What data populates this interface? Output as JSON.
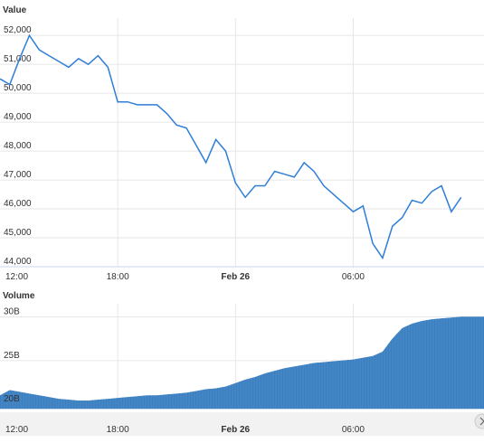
{
  "chart_data": [
    {
      "type": "line",
      "ylabel": "Value",
      "ylim": [
        44000,
        52600
      ],
      "yticks": [
        "52,000",
        "51,000",
        "50,000",
        "49,000",
        "48,000",
        "47,000",
        "46,000",
        "45,000",
        "44,000"
      ],
      "ytick_values": [
        52000,
        51000,
        50000,
        49000,
        48000,
        47000,
        46000,
        45000,
        44000
      ],
      "xticks": [
        "12:00",
        "18:00",
        "Feb 26",
        "06:00"
      ],
      "grid": true,
      "series": [
        {
          "x": [
            "2021-02-25 12:00",
            "2021-02-25 12:30",
            "2021-02-25 13:00",
            "2021-02-25 13:30",
            "2021-02-25 14:00",
            "2021-02-25 14:30",
            "2021-02-25 15:00",
            "2021-02-25 15:30",
            "2021-02-25 16:00",
            "2021-02-25 16:30",
            "2021-02-25 17:00",
            "2021-02-25 17:30",
            "2021-02-25 18:00",
            "2021-02-25 18:30",
            "2021-02-25 19:00",
            "2021-02-25 19:30",
            "2021-02-25 20:00",
            "2021-02-25 20:30",
            "2021-02-25 21:00",
            "2021-02-25 21:30",
            "2021-02-25 22:00",
            "2021-02-25 22:30",
            "2021-02-25 23:00",
            "2021-02-25 23:30",
            "2021-02-26 00:00",
            "2021-02-26 00:30",
            "2021-02-26 01:00",
            "2021-02-26 01:30",
            "2021-02-26 02:00",
            "2021-02-26 02:30",
            "2021-02-26 03:00",
            "2021-02-26 03:30",
            "2021-02-26 04:00",
            "2021-02-26 04:30",
            "2021-02-26 05:00",
            "2021-02-26 05:30",
            "2021-02-26 06:00",
            "2021-02-26 06:30",
            "2021-02-26 07:00",
            "2021-02-26 07:30",
            "2021-02-26 08:00",
            "2021-02-26 08:30",
            "2021-02-26 09:00",
            "2021-02-26 09:30",
            "2021-02-26 10:00",
            "2021-02-26 10:30",
            "2021-02-26 11:00",
            "2021-02-26 11:30"
          ],
          "values": [
            50500,
            50300,
            51200,
            52000,
            51500,
            51300,
            51100,
            50900,
            51200,
            51000,
            51300,
            50900,
            49700,
            49700,
            49600,
            49600,
            49600,
            49300,
            48900,
            48800,
            48200,
            47600,
            48400,
            48000,
            46900,
            46400,
            46800,
            46800,
            47300,
            47200,
            47100,
            47600,
            47300,
            46800,
            46500,
            46200,
            45900,
            46100,
            44800,
            44300,
            45400,
            45700,
            46300,
            46200,
            46600,
            46800,
            45900,
            46400
          ]
        }
      ]
    },
    {
      "type": "area",
      "ylabel": "Volume",
      "ylim": [
        19500000000,
        31500000000
      ],
      "yticks": [
        "30B",
        "25B",
        "20B"
      ],
      "ytick_values": [
        30000000000,
        25000000000,
        20000000000
      ],
      "xticks": [
        "12:00",
        "18:00",
        "Feb 26",
        "06:00"
      ],
      "grid": true,
      "series": [
        {
          "x": [
            "2021-02-25 12:00",
            "2021-02-25 12:30",
            "2021-02-25 13:00",
            "2021-02-25 13:30",
            "2021-02-25 14:00",
            "2021-02-25 14:30",
            "2021-02-25 15:00",
            "2021-02-25 15:30",
            "2021-02-25 16:00",
            "2021-02-25 16:30",
            "2021-02-25 17:00",
            "2021-02-25 17:30",
            "2021-02-25 18:00",
            "2021-02-25 18:30",
            "2021-02-25 19:00",
            "2021-02-25 19:30",
            "2021-02-25 20:00",
            "2021-02-25 20:30",
            "2021-02-25 21:00",
            "2021-02-25 21:30",
            "2021-02-25 22:00",
            "2021-02-25 22:30",
            "2021-02-25 23:00",
            "2021-02-25 23:30",
            "2021-02-26 00:00",
            "2021-02-26 00:30",
            "2021-02-26 01:00",
            "2021-02-26 01:30",
            "2021-02-26 02:00",
            "2021-02-26 02:30",
            "2021-02-26 03:00",
            "2021-02-26 03:30",
            "2021-02-26 04:00",
            "2021-02-26 04:30",
            "2021-02-26 05:00",
            "2021-02-26 05:30",
            "2021-02-26 06:00",
            "2021-02-26 06:30",
            "2021-02-26 07:00",
            "2021-02-26 07:30",
            "2021-02-26 08:00",
            "2021-02-26 08:30",
            "2021-02-26 09:00",
            "2021-02-26 09:30",
            "2021-02-26 10:00",
            "2021-02-26 10:30",
            "2021-02-26 11:00",
            "2021-02-26 11:30"
          ],
          "values": [
            21000000000,
            21600000000,
            21400000000,
            21200000000,
            21000000000,
            20800000000,
            20600000000,
            20500000000,
            20400000000,
            20400000000,
            20500000000,
            20600000000,
            20700000000,
            20800000000,
            20900000000,
            21000000000,
            21000000000,
            21100000000,
            21200000000,
            21300000000,
            21500000000,
            21700000000,
            21800000000,
            22000000000,
            22400000000,
            22800000000,
            23100000000,
            23500000000,
            23800000000,
            24100000000,
            24300000000,
            24500000000,
            24700000000,
            24800000000,
            24900000000,
            25000000000,
            25100000000,
            25300000000,
            25500000000,
            26000000000,
            27500000000,
            28700000000,
            29200000000,
            29500000000,
            29700000000,
            29800000000,
            29900000000,
            30000000000
          ]
        }
      ]
    }
  ],
  "colors": {
    "series": "#2f7ed8",
    "volume_fill": "#3a7fc1",
    "grid": "#e6e6e6",
    "text": "#333333"
  }
}
